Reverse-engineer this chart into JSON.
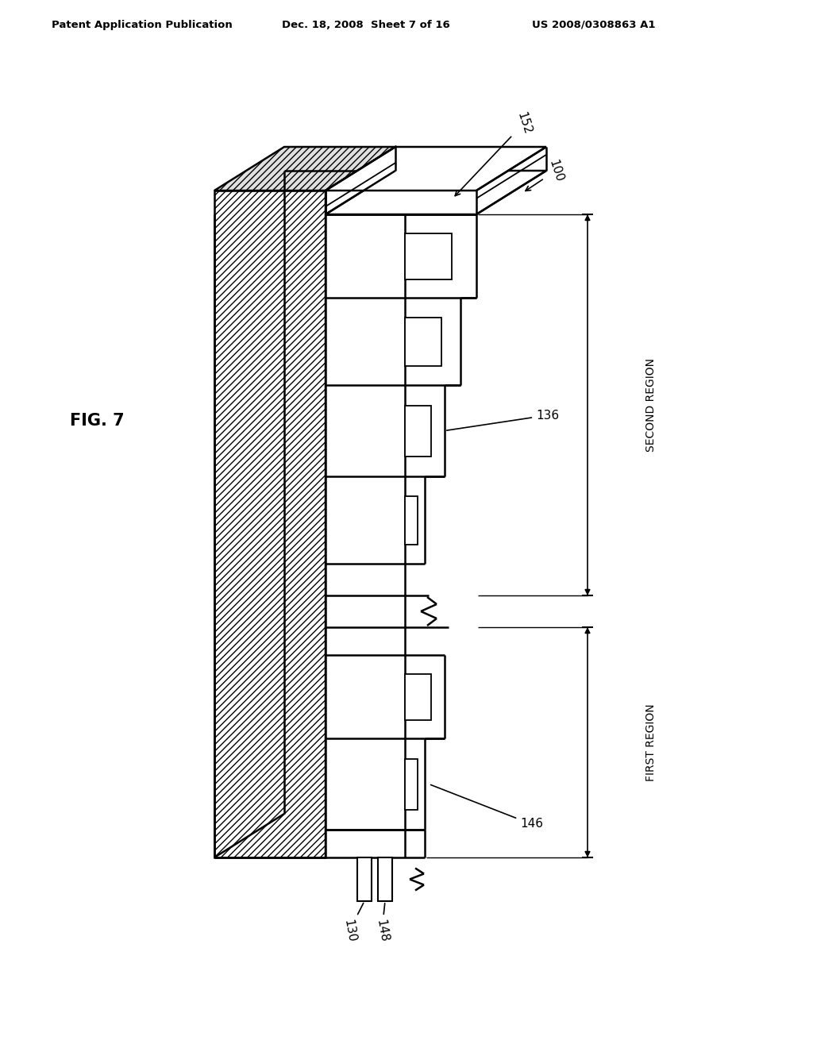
{
  "background_color": "#ffffff",
  "header_left": "Patent Application Publication",
  "header_mid": "Dec. 18, 2008  Sheet 7 of 16",
  "header_right": "US 2008/0308863 A1",
  "fig_label": "FIG. 7",
  "label_100": "100",
  "label_130": "130",
  "label_136": "136",
  "label_146": "146",
  "label_148": "148",
  "label_152": "152",
  "region_first": "FIRST REGION",
  "region_second": "SECOND REGION"
}
